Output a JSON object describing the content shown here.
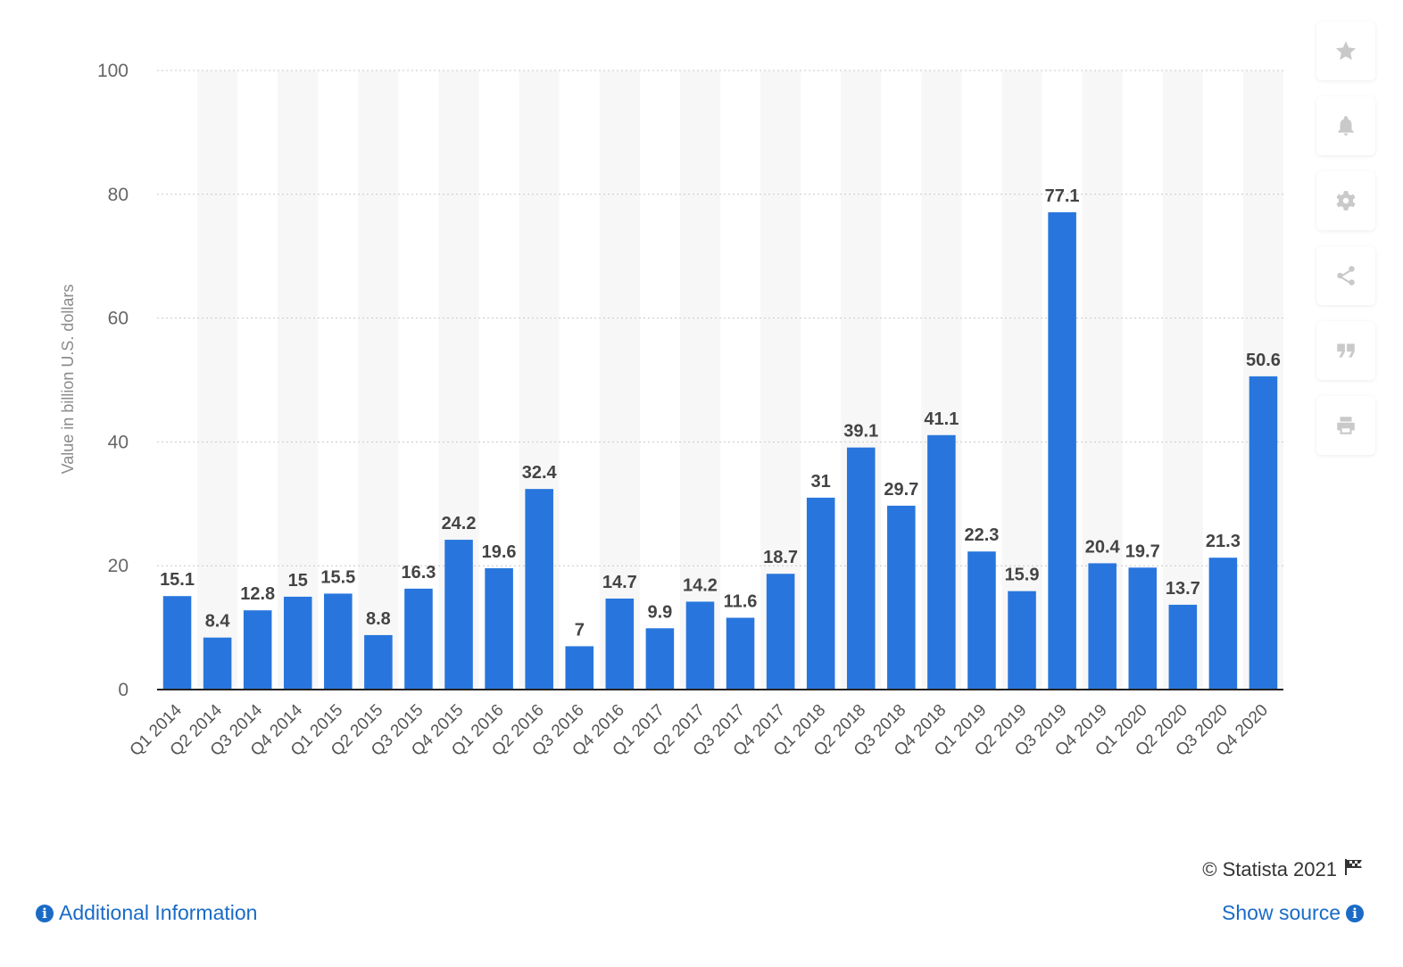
{
  "chart_data": {
    "type": "bar",
    "categories": [
      "Q1 2014",
      "Q2 2014",
      "Q3 2014",
      "Q4 2014",
      "Q1 2015",
      "Q2 2015",
      "Q3 2015",
      "Q4 2015",
      "Q1 2016",
      "Q2 2016",
      "Q3 2016",
      "Q4 2016",
      "Q1 2017",
      "Q2 2017",
      "Q3 2017",
      "Q4 2017",
      "Q1 2018",
      "Q2 2018",
      "Q3 2018",
      "Q4 2018",
      "Q1 2019",
      "Q2 2019",
      "Q3 2019",
      "Q4 2019",
      "Q1 2020",
      "Q2 2020",
      "Q3 2020",
      "Q4 2020"
    ],
    "values": [
      15.1,
      8.4,
      12.8,
      15,
      15.5,
      8.8,
      16.3,
      24.2,
      19.6,
      32.4,
      7,
      14.7,
      9.9,
      14.2,
      11.6,
      18.7,
      31,
      39.1,
      29.7,
      41.1,
      22.3,
      15.9,
      77.1,
      20.4,
      19.7,
      13.7,
      21.3,
      50.6
    ],
    "labels": [
      "15.1",
      "8.4",
      "12.8",
      "15",
      "15.5",
      "8.8",
      "16.3",
      "24.2",
      "19.6",
      "32.4",
      "7",
      "14.7",
      "9.9",
      "14.2",
      "11.6",
      "18.7",
      "31",
      "39.1",
      "29.7",
      "41.1",
      "22.3",
      "15.9",
      "77.1",
      "20.4",
      "19.7",
      "13.7",
      "21.3",
      "50.6"
    ],
    "ylabel": "Value in billion U.S. dollars",
    "xlabel": "",
    "title": "",
    "ylim": [
      0,
      100
    ],
    "yticks": [
      "0",
      "20",
      "40",
      "60",
      "80",
      "100"
    ],
    "bar_color": "#2876dd",
    "grid": true
  },
  "sidebar": {
    "buttons": [
      {
        "icon": "star-icon",
        "name": "favorite-button"
      },
      {
        "icon": "bell-icon",
        "name": "notification-button"
      },
      {
        "icon": "gear-icon",
        "name": "settings-button"
      },
      {
        "icon": "share-icon",
        "name": "share-button"
      },
      {
        "icon": "quote-icon",
        "name": "cite-button"
      },
      {
        "icon": "print-icon",
        "name": "print-button"
      }
    ]
  },
  "footer": {
    "copyright": "© Statista 2021",
    "additional_info": "Additional Information",
    "show_source": "Show source"
  }
}
